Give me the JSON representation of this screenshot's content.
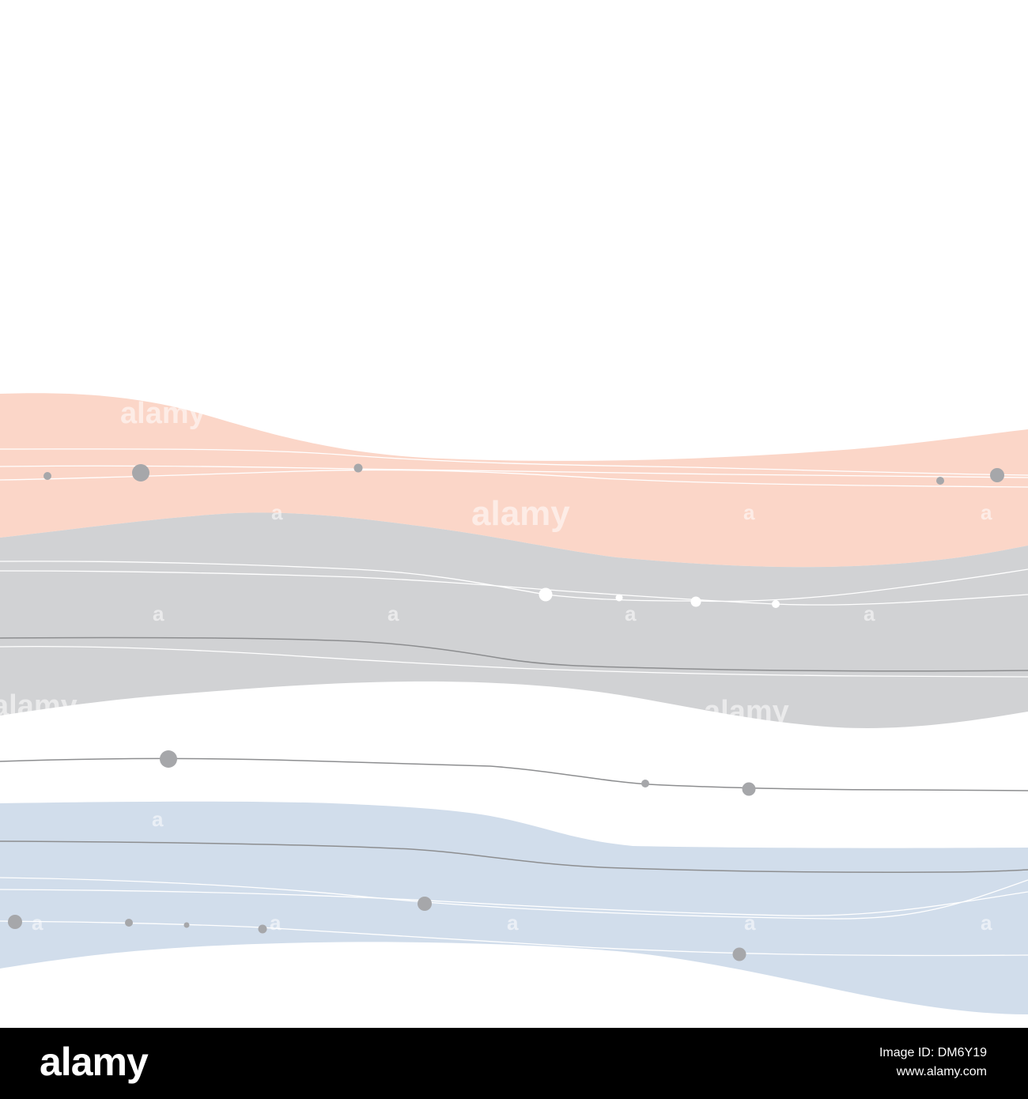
{
  "watermark": {
    "brand": "alamy",
    "short": "a"
  },
  "footer": {
    "logo": "alamy",
    "image_id": "Image ID: DM6Y19",
    "site": "www.alamy.com"
  },
  "colors": {
    "peach": "#fbd6c8",
    "gray_band": "#d1d2d4",
    "blue_band": "#d1ddeb",
    "line_white": "#ffffff",
    "line_gray": "#8d8e90",
    "dot_gray": "#a6a7aa",
    "footer_bg": "#000000"
  }
}
